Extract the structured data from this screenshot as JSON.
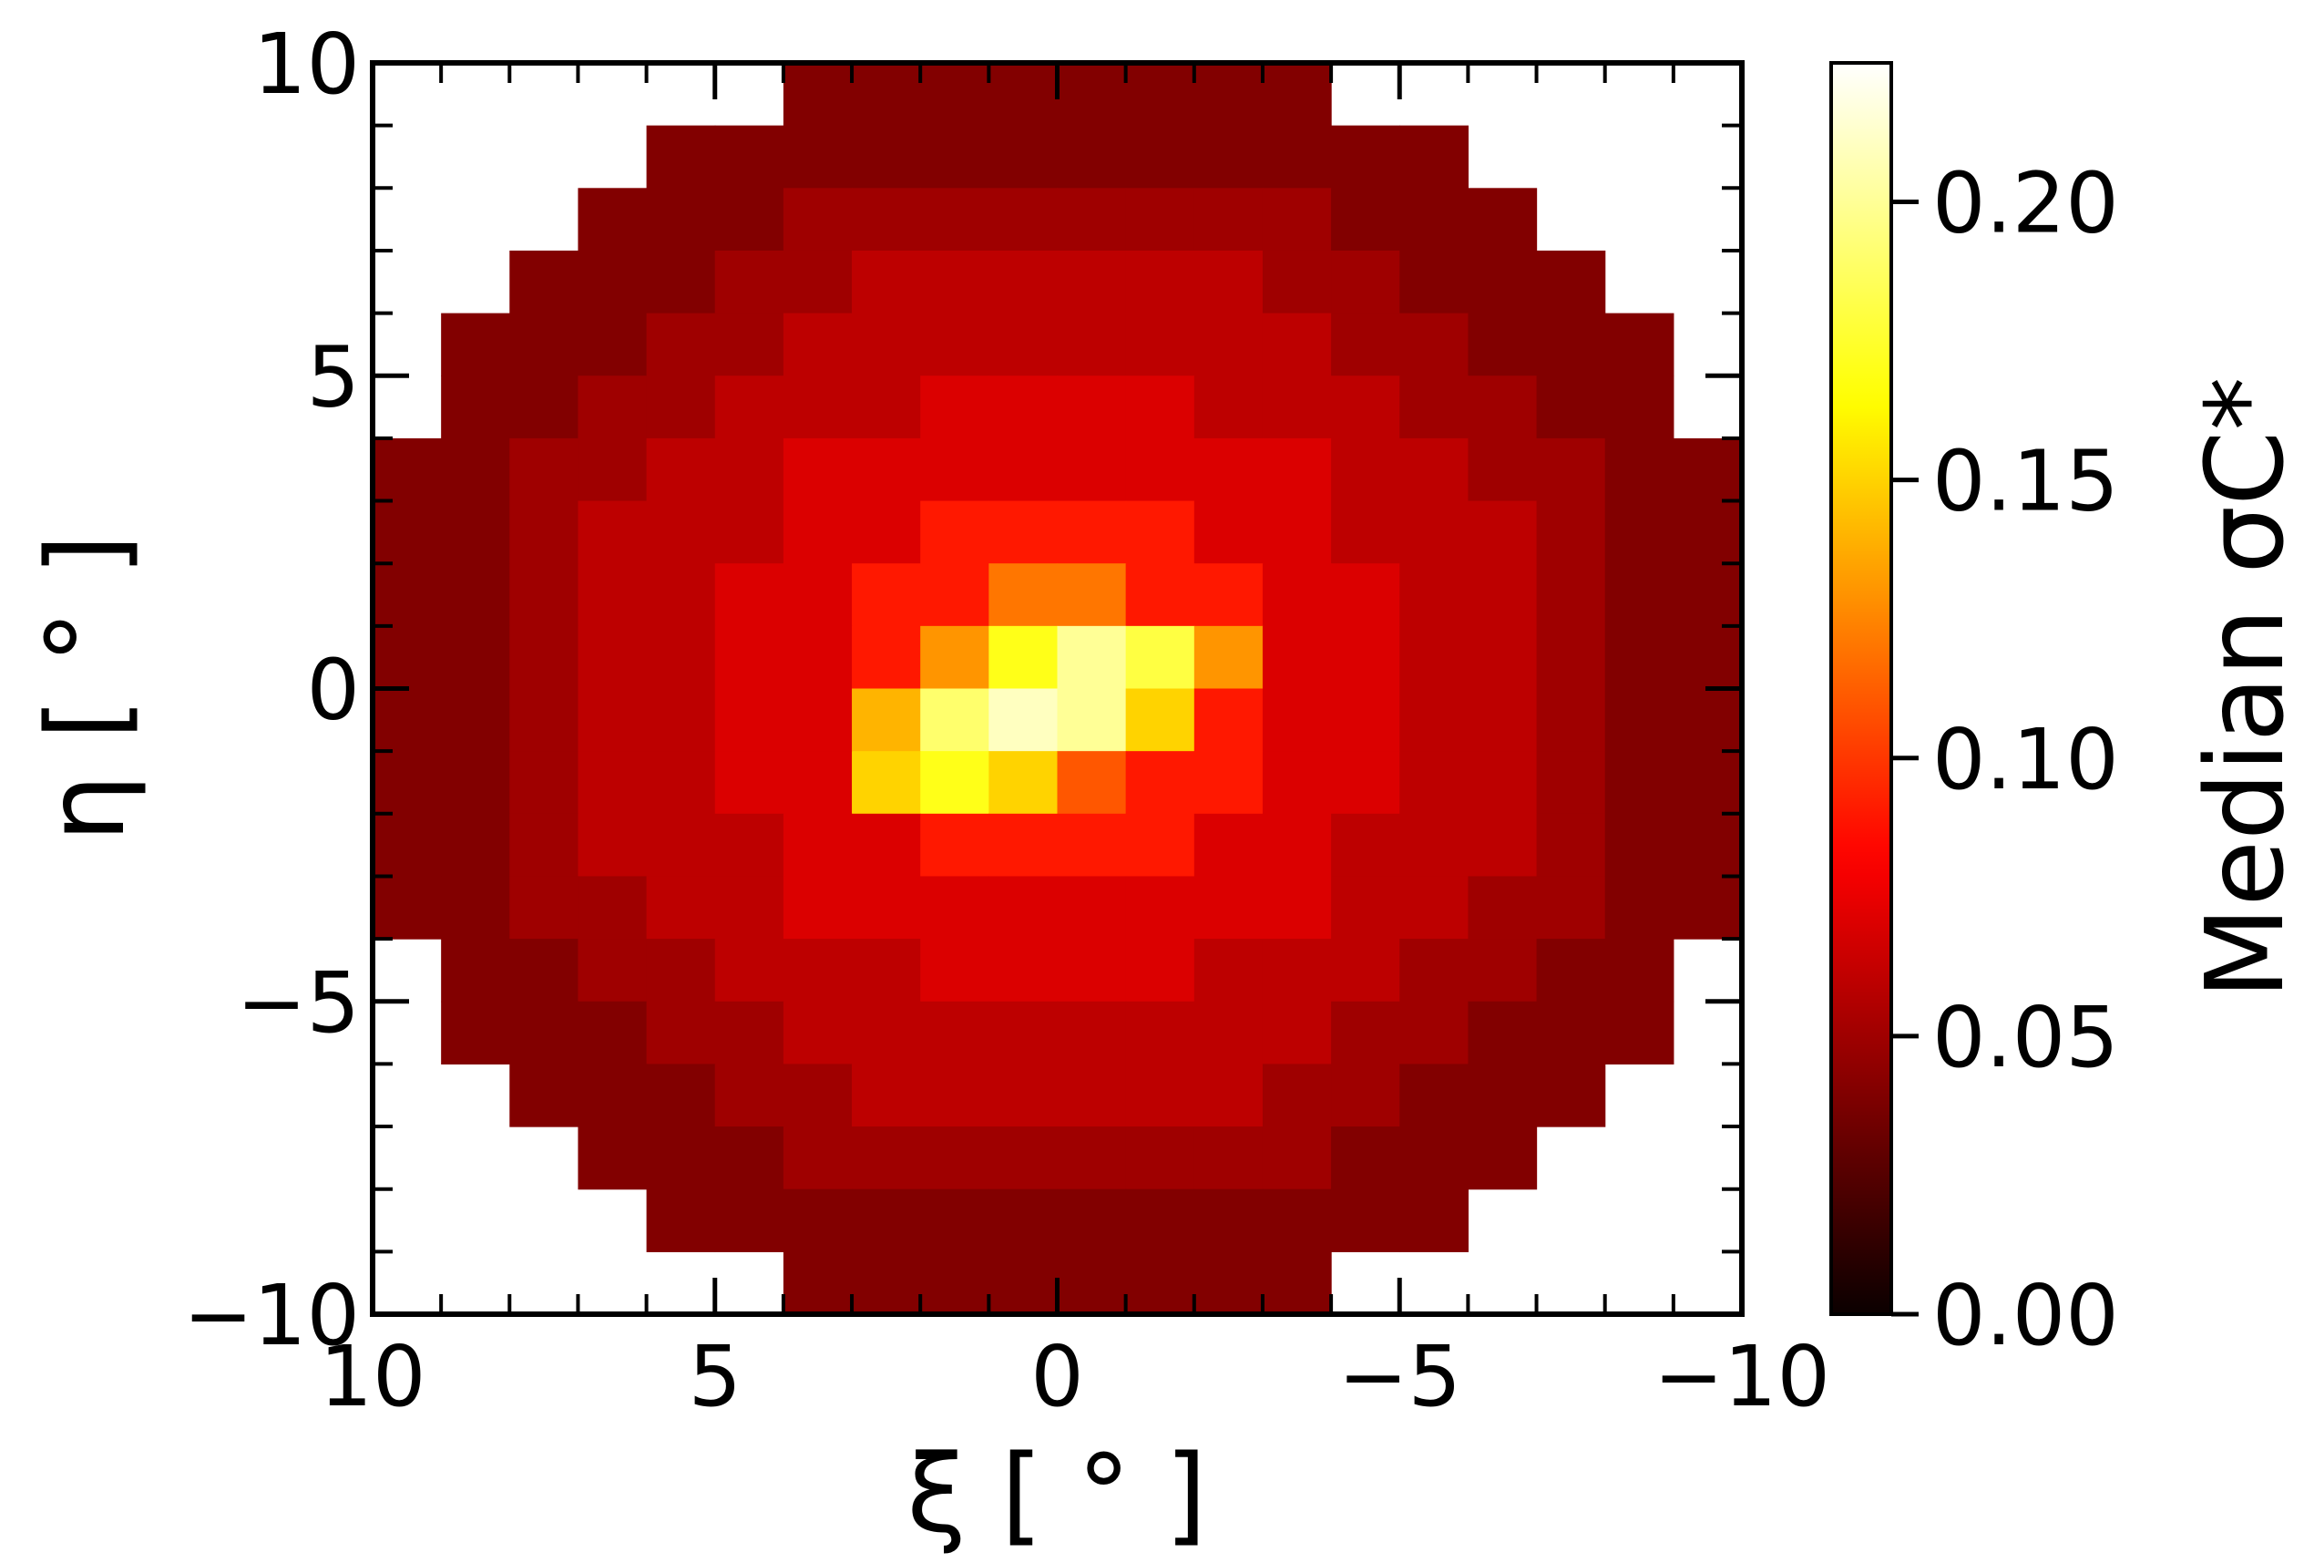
{
  "chart_data": {
    "type": "heatmap",
    "xlabel": "ξ [ ° ]",
    "ylabel": "η [ ° ]",
    "colorbar_label": "Median σC*",
    "cmap": "hot",
    "xlim": [
      10,
      -10
    ],
    "ylim": [
      -10,
      10
    ],
    "xticks": [
      {
        "value": 10,
        "label": "10"
      },
      {
        "value": 5,
        "label": "5"
      },
      {
        "value": 0,
        "label": "0"
      },
      {
        "value": -5,
        "label": "−5"
      },
      {
        "value": -10,
        "label": "−10"
      }
    ],
    "yticks": [
      {
        "value": -10,
        "label": "−10"
      },
      {
        "value": -5,
        "label": "−5"
      },
      {
        "value": 0,
        "label": "0"
      },
      {
        "value": 5,
        "label": "5"
      },
      {
        "value": 10,
        "label": "10"
      }
    ],
    "clim": [
      0,
      0.225
    ],
    "cticks": [
      {
        "value": 0,
        "label": "0.00"
      },
      {
        "value": 0.05,
        "label": "0.05"
      },
      {
        "value": 0.1,
        "label": "0.10"
      },
      {
        "value": 0.15,
        "label": "0.15"
      },
      {
        "value": 0.2,
        "label": "0.20"
      }
    ],
    "xbins": [
      10,
      9,
      8,
      7,
      6,
      5,
      4,
      3,
      2,
      1,
      0,
      -1,
      -2,
      -3,
      -4,
      -5,
      -6,
      -7,
      -8,
      -9,
      -10
    ],
    "ybins": [
      10,
      9,
      8,
      7,
      6,
      5,
      4,
      3,
      2,
      1,
      0,
      -1,
      -2,
      -3,
      -4,
      -5,
      -6,
      -7,
      -8,
      -9,
      -10
    ],
    "z": [
      [
        null,
        null,
        null,
        null,
        null,
        null,
        0.04,
        0.04,
        0.04,
        0.04,
        0.04,
        0.04,
        0.04,
        0.04,
        null,
        null,
        null,
        null,
        null,
        null
      ],
      [
        null,
        null,
        null,
        null,
        0.04,
        0.04,
        0.04,
        0.04,
        0.04,
        0.04,
        0.04,
        0.04,
        0.04,
        0.04,
        0.04,
        0.04,
        null,
        null,
        null,
        null
      ],
      [
        null,
        null,
        null,
        0.04,
        0.04,
        0.04,
        0.05,
        0.05,
        0.05,
        0.05,
        0.05,
        0.05,
        0.05,
        0.05,
        0.04,
        0.04,
        0.04,
        null,
        null,
        null
      ],
      [
        null,
        null,
        0.04,
        0.04,
        0.04,
        0.05,
        0.05,
        0.06,
        0.06,
        0.06,
        0.06,
        0.06,
        0.06,
        0.05,
        0.05,
        0.04,
        0.04,
        0.04,
        null,
        null
      ],
      [
        null,
        0.04,
        0.04,
        0.04,
        0.05,
        0.05,
        0.06,
        0.06,
        0.06,
        0.06,
        0.06,
        0.06,
        0.06,
        0.06,
        0.05,
        0.05,
        0.04,
        0.04,
        0.04,
        null
      ],
      [
        null,
        0.04,
        0.04,
        0.05,
        0.05,
        0.06,
        0.06,
        0.06,
        0.07,
        0.07,
        0.07,
        0.07,
        0.06,
        0.06,
        0.06,
        0.05,
        0.05,
        0.04,
        0.04,
        null
      ],
      [
        0.04,
        0.04,
        0.05,
        0.05,
        0.06,
        0.06,
        0.07,
        0.07,
        0.07,
        0.07,
        0.07,
        0.07,
        0.07,
        0.07,
        0.06,
        0.06,
        0.05,
        0.05,
        0.04,
        0.04
      ],
      [
        0.04,
        0.04,
        0.05,
        0.06,
        0.06,
        0.06,
        0.07,
        0.07,
        0.09,
        0.09,
        0.09,
        0.09,
        0.07,
        0.07,
        0.06,
        0.06,
        0.06,
        0.05,
        0.04,
        0.04
      ],
      [
        0.04,
        0.04,
        0.05,
        0.06,
        0.06,
        0.07,
        0.07,
        0.09,
        0.09,
        0.12,
        0.12,
        0.09,
        0.09,
        0.07,
        0.07,
        0.06,
        0.06,
        0.05,
        0.04,
        0.04
      ],
      [
        0.04,
        0.04,
        0.05,
        0.06,
        0.06,
        0.07,
        0.07,
        0.09,
        0.13,
        0.17,
        0.2,
        0.18,
        0.13,
        0.07,
        0.07,
        0.06,
        0.06,
        0.05,
        0.04,
        0.04
      ],
      [
        0.04,
        0.04,
        0.05,
        0.06,
        0.06,
        0.07,
        0.07,
        0.14,
        0.19,
        0.21,
        0.2,
        0.15,
        0.09,
        0.07,
        0.07,
        0.06,
        0.06,
        0.05,
        0.04,
        0.04
      ],
      [
        0.04,
        0.04,
        0.05,
        0.06,
        0.06,
        0.07,
        0.07,
        0.15,
        0.17,
        0.15,
        0.11,
        0.09,
        0.09,
        0.07,
        0.07,
        0.06,
        0.06,
        0.05,
        0.04,
        0.04
      ],
      [
        0.04,
        0.04,
        0.05,
        0.06,
        0.06,
        0.06,
        0.07,
        0.07,
        0.09,
        0.09,
        0.09,
        0.09,
        0.07,
        0.07,
        0.06,
        0.06,
        0.06,
        0.05,
        0.04,
        0.04
      ],
      [
        0.04,
        0.04,
        0.05,
        0.05,
        0.06,
        0.06,
        0.07,
        0.07,
        0.07,
        0.07,
        0.07,
        0.07,
        0.07,
        0.07,
        0.06,
        0.06,
        0.05,
        0.05,
        0.04,
        0.04
      ],
      [
        null,
        0.04,
        0.04,
        0.05,
        0.05,
        0.06,
        0.06,
        0.06,
        0.07,
        0.07,
        0.07,
        0.07,
        0.06,
        0.06,
        0.06,
        0.05,
        0.05,
        0.04,
        0.04,
        null
      ],
      [
        null,
        0.04,
        0.04,
        0.04,
        0.05,
        0.05,
        0.06,
        0.06,
        0.06,
        0.06,
        0.06,
        0.06,
        0.06,
        0.06,
        0.05,
        0.05,
        0.04,
        0.04,
        0.04,
        null
      ],
      [
        null,
        null,
        0.04,
        0.04,
        0.04,
        0.05,
        0.05,
        0.06,
        0.06,
        0.06,
        0.06,
        0.06,
        0.06,
        0.05,
        0.05,
        0.04,
        0.04,
        0.04,
        null,
        null
      ],
      [
        null,
        null,
        null,
        0.04,
        0.04,
        0.04,
        0.05,
        0.05,
        0.05,
        0.05,
        0.05,
        0.05,
        0.05,
        0.05,
        0.04,
        0.04,
        0.04,
        null,
        null,
        null
      ],
      [
        null,
        null,
        null,
        null,
        0.04,
        0.04,
        0.04,
        0.04,
        0.04,
        0.04,
        0.04,
        0.04,
        0.04,
        0.04,
        0.04,
        0.04,
        null,
        null,
        null,
        null
      ],
      [
        null,
        null,
        null,
        null,
        null,
        null,
        0.04,
        0.04,
        0.04,
        0.04,
        0.04,
        0.04,
        0.04,
        0.04,
        null,
        null,
        null,
        null,
        null,
        null
      ]
    ]
  }
}
